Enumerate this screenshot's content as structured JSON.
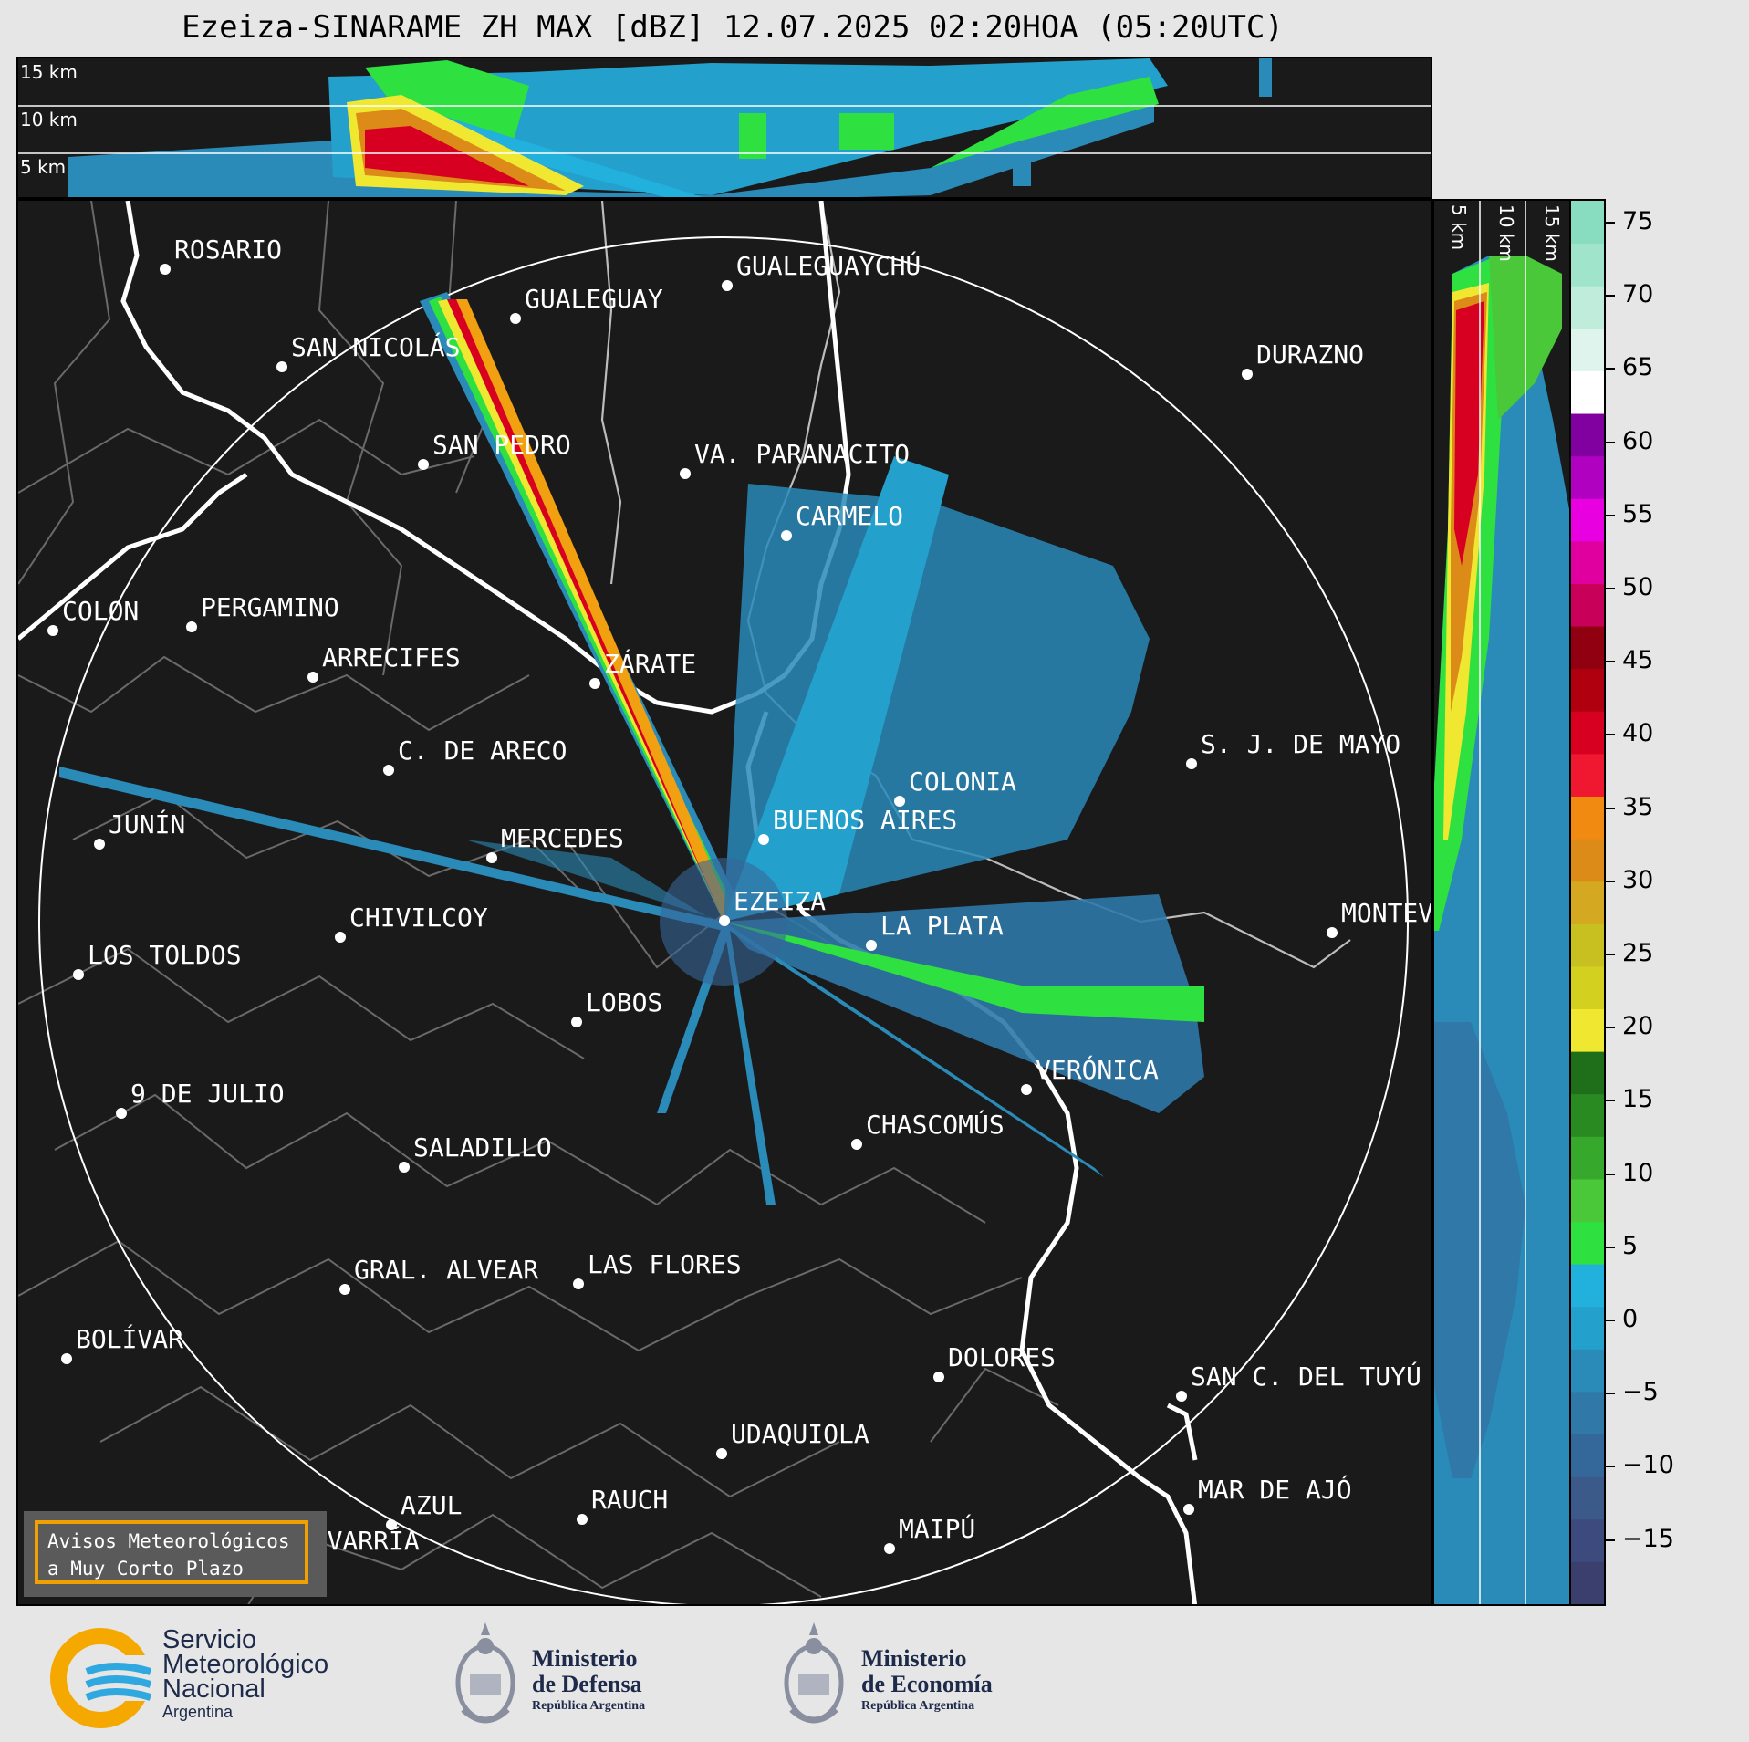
{
  "title": "Ezeiza-SINARAME ZH MAX [dBZ] 12.07.2025 02:20HOA (05:20UTC)",
  "height_labels": [
    "15 km",
    "10 km",
    "5 km"
  ],
  "cities": [
    {
      "name": "ROSARIO",
      "key": "rosario"
    },
    {
      "name": "GUALEGUAYCHÚ",
      "key": "gualeguaychu"
    },
    {
      "name": "GUALEGUAY",
      "key": "gualeguay"
    },
    {
      "name": "SAN NICOLÁS",
      "key": "sannicolas"
    },
    {
      "name": "DURAZNO",
      "key": "durazno"
    },
    {
      "name": "SAN PEDRO",
      "key": "sanpedro"
    },
    {
      "name": "VA. PARANACITO",
      "key": "paranacito"
    },
    {
      "name": "COLON",
      "key": "colon"
    },
    {
      "name": "PERGAMINO",
      "key": "pergamino"
    },
    {
      "name": "CARMELO",
      "key": "carmelo"
    },
    {
      "name": "ARRECIFES",
      "key": "arrecifes"
    },
    {
      "name": "ZÁRATE",
      "key": "zarate"
    },
    {
      "name": "S. J. DE MAYO",
      "key": "sjdemayo"
    },
    {
      "name": "C. DE ARECO",
      "key": "careco"
    },
    {
      "name": "COLONIA",
      "key": "colonia"
    },
    {
      "name": "JUNÍN",
      "key": "junin"
    },
    {
      "name": "BUENOS AIRES",
      "key": "buenosaires"
    },
    {
      "name": "MERCEDES",
      "key": "mercedes"
    },
    {
      "name": "MONTEVIDEO",
      "key": "montevideo"
    },
    {
      "name": "EZEIZA",
      "key": "ezeiza"
    },
    {
      "name": "CHIVILCOY",
      "key": "chivilcoy"
    },
    {
      "name": "LA PLATA",
      "key": "laplata"
    },
    {
      "name": "LOS TOLDOS",
      "key": "lostoldos"
    },
    {
      "name": "LOBOS",
      "key": "lobos"
    },
    {
      "name": "VERÓNICA",
      "key": "veronica"
    },
    {
      "name": "9 DE JULIO",
      "key": "9dejulio"
    },
    {
      "name": "CHASCOMÚS",
      "key": "chascomus"
    },
    {
      "name": "SALADILLO",
      "key": "saladillo"
    },
    {
      "name": "GRAL. ALVEAR",
      "key": "gralalvear"
    },
    {
      "name": "LAS FLORES",
      "key": "lasflores"
    },
    {
      "name": "BOLÍVAR",
      "key": "bolivar"
    },
    {
      "name": "DOLORES",
      "key": "dolores"
    },
    {
      "name": "SAN C. DEL TUYÚ",
      "key": "sanclemente"
    },
    {
      "name": "UDAQUIOLA",
      "key": "udaquiola"
    },
    {
      "name": "MAR DE AJÓ",
      "key": "mardeajo"
    },
    {
      "name": "AZUL",
      "key": "azul"
    },
    {
      "name": "RAUCH",
      "key": "rauch"
    },
    {
      "name": "MAIPÚ",
      "key": "maipu"
    },
    {
      "name": "OLAVARRÍA",
      "key": "olavarria"
    }
  ],
  "colorbar": {
    "ticks": [
      "75",
      "70",
      "65",
      "60",
      "55",
      "50",
      "45",
      "40",
      "35",
      "30",
      "25",
      "20",
      "15",
      "10",
      "5",
      "0",
      "−5",
      "−10",
      "−15"
    ],
    "colors": [
      "#3a3f6e",
      "#3d4a7e",
      "#3b5a8a",
      "#35689a",
      "#2f78a8",
      "#2a8ab8",
      "#24a0cc",
      "#22b0dc",
      "#2ee040",
      "#4ac83a",
      "#36a82c",
      "#2a8a22",
      "#1f6e1a",
      "#f0e830",
      "#d4d020",
      "#c8c020",
      "#d4a820",
      "#dc8a18",
      "#f08a10",
      "#f01830",
      "#d80020",
      "#b00010",
      "#900010",
      "#c8005a",
      "#e000a0",
      "#e800e0",
      "#b000c0",
      "#8000a0",
      "#ffffff",
      "#e0f4ee",
      "#c0ecdc",
      "#a0e4cc",
      "#88dcc0"
    ]
  },
  "alert": {
    "line1": "Avisos Meteorológicos",
    "line2": "a Muy Corto Plazo"
  },
  "logos": {
    "smn_line1": "Servicio",
    "smn_line2": "Meteorológico",
    "smn_line3": "Nacional",
    "smn_line4": "Argentina",
    "def_line1": "Ministerio",
    "def_line2": "de Defensa",
    "def_line3": "República Argentina",
    "eco_line1": "Ministerio",
    "eco_line2": "de Economía",
    "eco_line3": "República Argentina"
  }
}
